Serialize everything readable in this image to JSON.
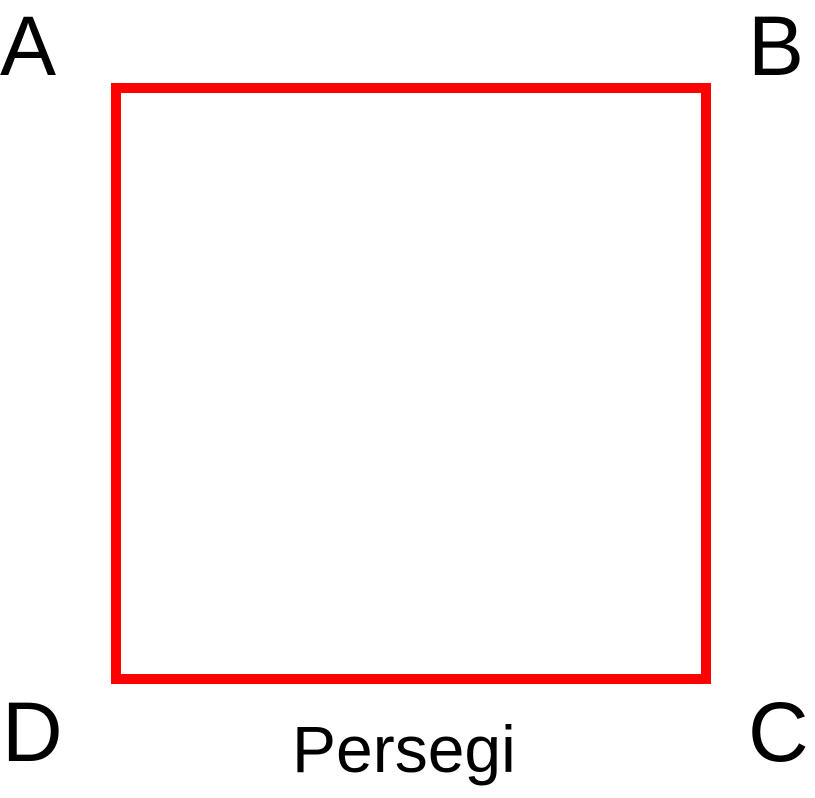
{
  "diagram": {
    "shape": "square",
    "stroke_color": "#ff0000",
    "fill_color": "#ffffff",
    "vertices": {
      "top_left": "A",
      "top_right": "B",
      "bottom_right": "C",
      "bottom_left": "D"
    },
    "caption": "Persegi"
  }
}
